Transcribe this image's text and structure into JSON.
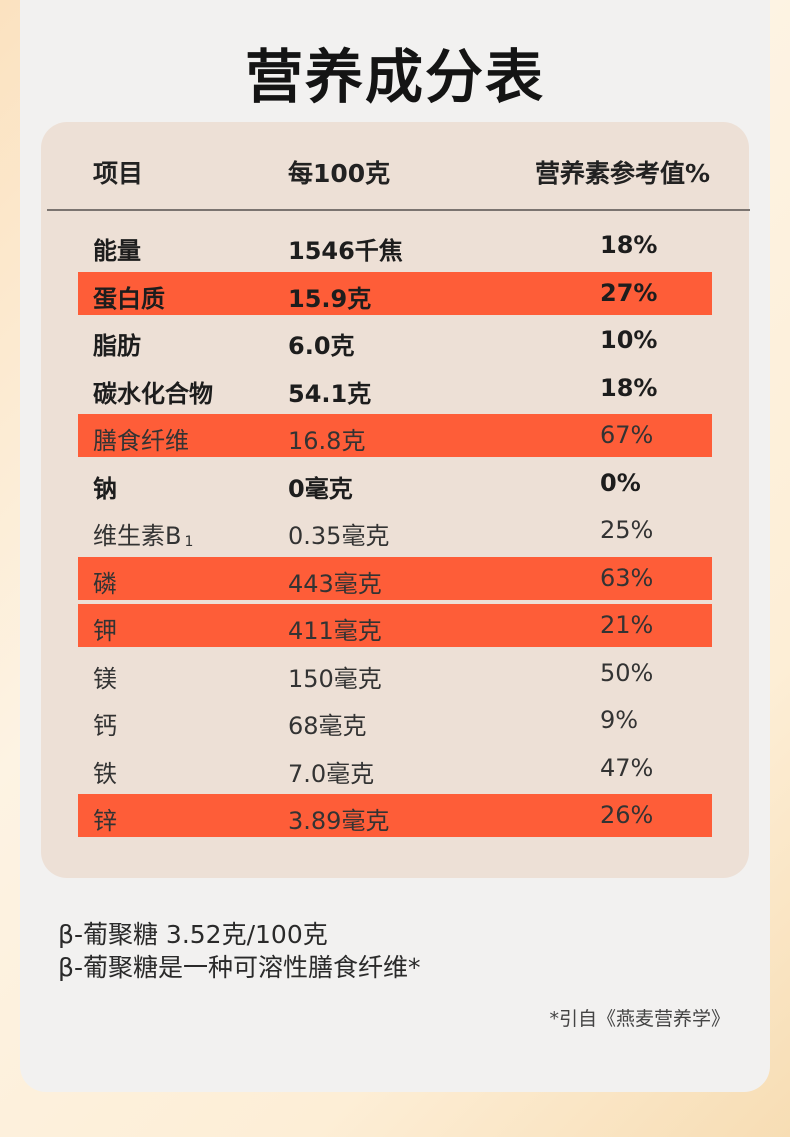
{
  "title": "营养成分表",
  "headers": {
    "item": "项目",
    "per100": "每100克",
    "nrv": "营养素参考值%"
  },
  "rows": [
    {
      "name": "能量",
      "amount": "1546千焦",
      "nrv": "18%",
      "bold": true,
      "highlight": false
    },
    {
      "name": "蛋白质",
      "amount": "15.9克",
      "nrv": "27%",
      "bold": true,
      "highlight": true
    },
    {
      "name": "脂肪",
      "amount": "6.0克",
      "nrv": "10%",
      "bold": true,
      "highlight": false
    },
    {
      "name": "碳水化合物",
      "amount": "54.1克",
      "nrv": "18%",
      "bold": true,
      "highlight": false
    },
    {
      "name": "膳食纤维",
      "amount": "16.8克",
      "nrv": "67%",
      "bold": false,
      "highlight": true
    },
    {
      "name": "钠",
      "amount": "0毫克",
      "nrv": "0%",
      "bold": true,
      "highlight": false
    },
    {
      "name": "维生素B",
      "sub": "1",
      "amount": "0.35毫克",
      "nrv": "25%",
      "bold": false,
      "highlight": false
    },
    {
      "name": "磷",
      "amount": "443毫克",
      "nrv": "63%",
      "bold": false,
      "highlight": true
    },
    {
      "name": "钾",
      "amount": "411毫克",
      "nrv": "21%",
      "bold": false,
      "highlight": true
    },
    {
      "name": "镁",
      "amount": "150毫克",
      "nrv": "50%",
      "bold": false,
      "highlight": false
    },
    {
      "name": "钙",
      "amount": "68毫克",
      "nrv": "9%",
      "bold": false,
      "highlight": false
    },
    {
      "name": "铁",
      "amount": "7.0毫克",
      "nrv": "47%",
      "bold": false,
      "highlight": false
    },
    {
      "name": "锌",
      "amount": "3.89毫克",
      "nrv": "26%",
      "bold": false,
      "highlight": true
    }
  ],
  "notes": [
    "β-葡聚糖 3.52克/100克",
    "β-葡聚糖是一种可溶性膳食纤维*"
  ],
  "source": "*引自《燕麦营养学》",
  "colors": {
    "highlight": "#fe5d38",
    "panel": "#ede0d6",
    "card": "#f2f1f0"
  }
}
